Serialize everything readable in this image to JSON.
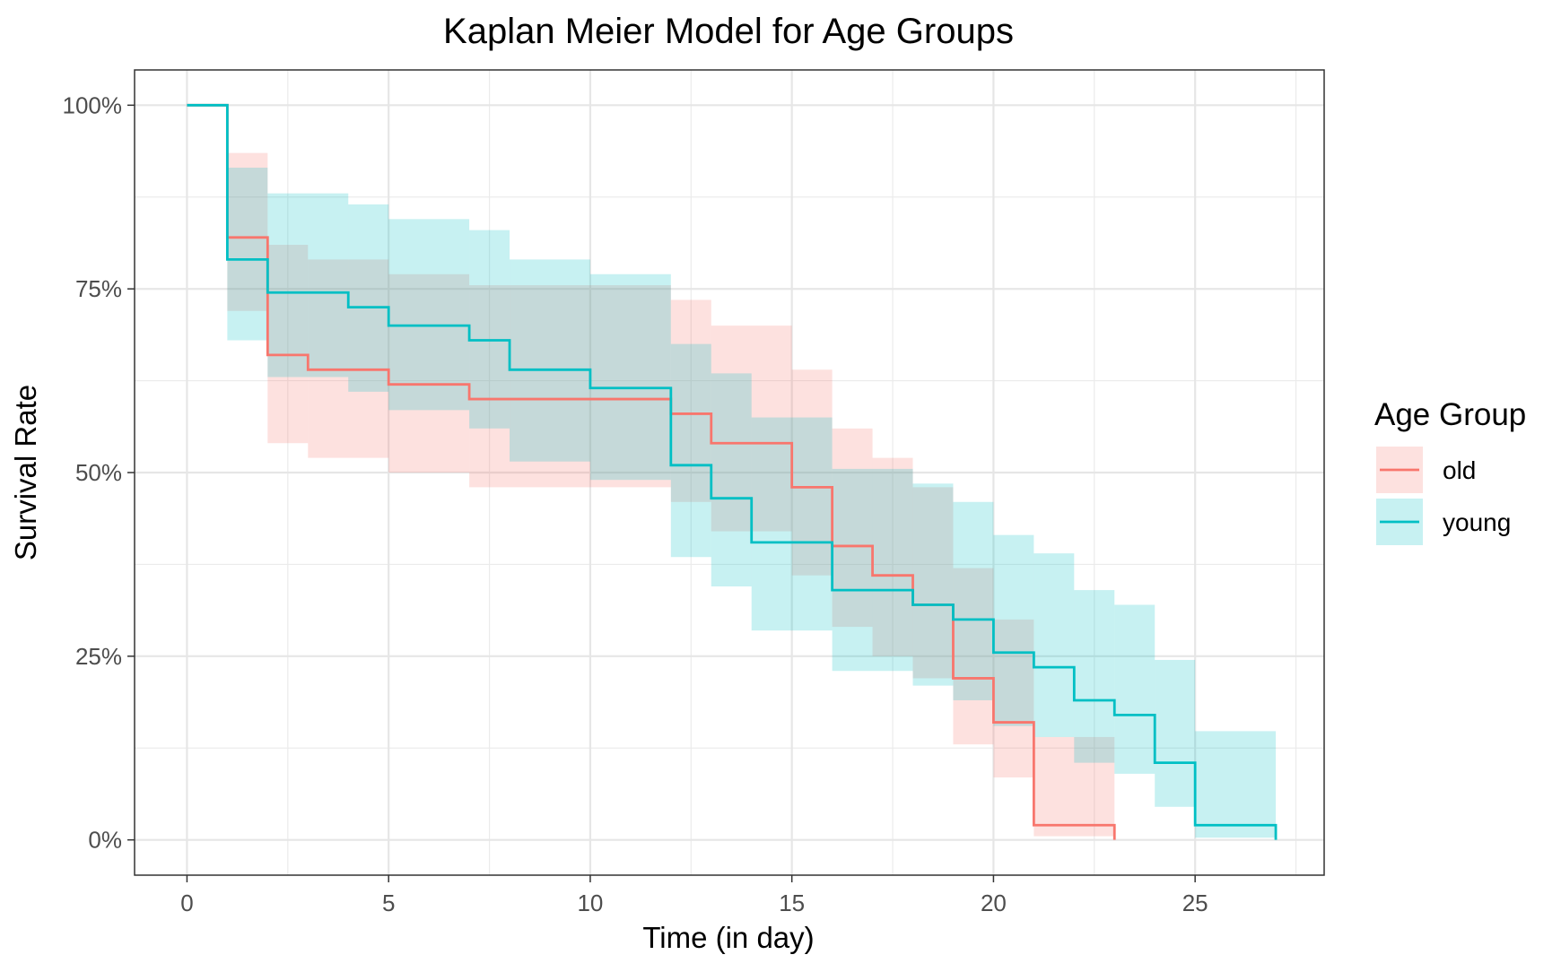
{
  "chart_data": {
    "type": "line",
    "subtype": "kaplan-meier step curves with confidence bands",
    "title": "Kaplan Meier Model for Age Groups",
    "xlabel": "Time (in day)",
    "ylabel": "Survival Rate",
    "xlim": [
      -1.3,
      28.2
    ],
    "ylim": [
      -0.048,
      1.048
    ],
    "x_ticks": [
      0,
      5,
      10,
      15,
      20,
      25
    ],
    "x_tick_labels": [
      "0",
      "5",
      "10",
      "15",
      "20",
      "25"
    ],
    "y_ticks": [
      0,
      0.25,
      0.5,
      0.75,
      1.0
    ],
    "y_tick_labels": [
      "0%",
      "25%",
      "50%",
      "75%",
      "100%"
    ],
    "grid": true,
    "legend": {
      "title": "Age Group",
      "position": "right",
      "entries": [
        "old",
        "young"
      ]
    },
    "series": [
      {
        "name": "old",
        "color": "#F8766D",
        "fill": "#F8766D",
        "t": [
          0,
          1,
          2,
          3,
          5,
          7,
          12,
          13,
          15,
          16,
          17,
          18,
          19,
          20,
          21,
          23
        ],
        "surv": [
          1.0,
          0.82,
          0.66,
          0.64,
          0.62,
          0.6,
          0.58,
          0.54,
          0.48,
          0.4,
          0.36,
          0.32,
          0.22,
          0.16,
          0.02,
          0.0
        ],
        "lower": [
          1.0,
          0.72,
          0.54,
          0.52,
          0.5,
          0.48,
          0.46,
          0.42,
          0.36,
          0.29,
          0.25,
          0.22,
          0.13,
          0.085,
          0.005,
          0.0
        ],
        "upper": [
          1.0,
          0.935,
          0.81,
          0.79,
          0.77,
          0.755,
          0.735,
          0.7,
          0.64,
          0.56,
          0.52,
          0.48,
          0.37,
          0.3,
          0.14,
          0.0
        ]
      },
      {
        "name": "young",
        "color": "#00BFC4",
        "fill": "#00BFC4",
        "t": [
          0,
          1,
          2,
          4,
          5,
          7,
          8,
          10,
          12,
          13,
          14,
          16,
          18,
          19,
          20,
          21,
          22,
          23,
          24,
          25,
          27
        ],
        "surv": [
          1.0,
          0.79,
          0.745,
          0.725,
          0.7,
          0.68,
          0.64,
          0.615,
          0.51,
          0.465,
          0.405,
          0.34,
          0.32,
          0.3,
          0.255,
          0.235,
          0.19,
          0.17,
          0.105,
          0.02,
          0.0
        ],
        "lower": [
          1.0,
          0.68,
          0.63,
          0.61,
          0.585,
          0.56,
          0.515,
          0.49,
          0.385,
          0.345,
          0.285,
          0.23,
          0.21,
          0.19,
          0.155,
          0.14,
          0.105,
          0.09,
          0.045,
          0.003,
          0.0
        ],
        "upper": [
          1.0,
          0.915,
          0.88,
          0.865,
          0.845,
          0.83,
          0.79,
          0.77,
          0.675,
          0.635,
          0.575,
          0.505,
          0.485,
          0.46,
          0.415,
          0.39,
          0.34,
          0.32,
          0.245,
          0.148,
          0.0
        ]
      }
    ]
  }
}
